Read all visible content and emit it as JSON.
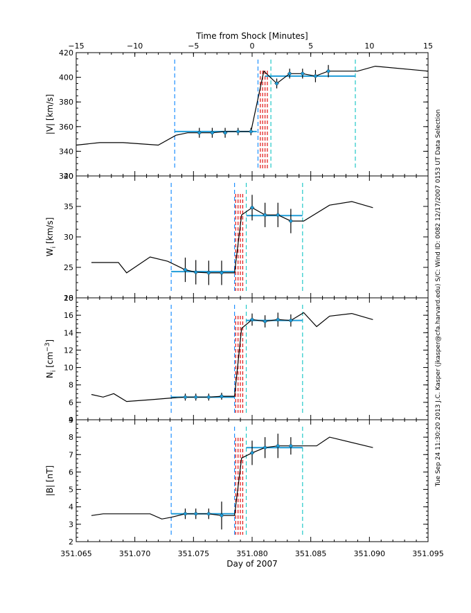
{
  "figure": {
    "top_axis_label": "Time from Shock [Minutes]",
    "top_ticks": [
      "−15",
      "−10",
      "−5",
      "0",
      "5",
      "10",
      "15"
    ],
    "x_label": "Day of 2007",
    "x_ticks": [
      "351.065",
      "351.070",
      "351.075",
      "351.080",
      "351.085",
      "351.090",
      "351.095"
    ],
    "side_text": "Tue Sep 24 11:30:20 2013   J.C. Kasper (jkasper@cfa.harvard.edu)   S/C: Wind ID: 0082 12/17/2007   0153 UT Data Selection",
    "colors": {
      "line": "#000000",
      "mean_marker": "#1e9bd7",
      "upstream_window": "#1e90ff",
      "downstream_window": "#20c8c8",
      "shock_lines": "#e01010"
    }
  },
  "chart_data": [
    {
      "type": "line",
      "title": "|V| [km/s]",
      "ylabel": "|V| [km/s]",
      "xlim": [
        351.065,
        351.095
      ],
      "ylim": [
        320,
        420
      ],
      "yticks": [
        320,
        340,
        360,
        380,
        400,
        420
      ],
      "series": [
        {
          "name": "|V|",
          "x": [
            351.065,
            351.067,
            351.069,
            351.072,
            351.0735,
            351.0745,
            351.0755,
            351.0766,
            351.0777,
            351.0788,
            351.0799,
            351.081,
            351.0821,
            351.0832,
            351.0843,
            351.0854,
            351.0865,
            351.089,
            351.0905,
            351.095
          ],
          "y": [
            345,
            347,
            347,
            345,
            353,
            355,
            355,
            355,
            356,
            356,
            356,
            405,
            395,
            403,
            403,
            401,
            405,
            405,
            409,
            405
          ]
        }
      ],
      "selected_points": {
        "x": [
          351.0755,
          351.0766,
          351.0777,
          351.0788,
          351.0799,
          351.0821,
          351.0832,
          351.0843,
          351.0854,
          351.0865
        ],
        "y": [
          355,
          355,
          355,
          356,
          356,
          395,
          403,
          403,
          401,
          405
        ],
        "err": [
          4,
          4,
          4,
          3,
          3,
          4,
          4,
          4,
          5,
          5
        ]
      },
      "upstream_mean": {
        "x": [
          351.0734,
          351.0804
        ],
        "y": 356
      },
      "downstream_mean": {
        "x": [
          351.0811,
          351.0888
        ],
        "y": 401
      },
      "upstream_window": [
        351.0734,
        351.0805
      ],
      "downstream_window": [
        351.0816,
        351.0888
      ],
      "shock_lines": [
        351.0807,
        351.0809,
        351.0811,
        351.0813
      ]
    },
    {
      "type": "line",
      "title": "W_i [km/s]",
      "ylabel": "W",
      "ylabel_sub": "i",
      "ylabel_unit": " [km/s]",
      "xlim": [
        351.065,
        351.095
      ],
      "ylim": [
        20,
        40
      ],
      "yticks": [
        20,
        25,
        30,
        35,
        40
      ],
      "series": [
        {
          "name": "Wi",
          "x": [
            351.0663,
            351.0678,
            351.0686,
            351.0693,
            351.0713,
            351.0728,
            351.0743,
            351.0752,
            351.0763,
            351.0774,
            351.0785,
            351.0791,
            351.08,
            351.0811,
            351.0822,
            351.0833,
            351.0844,
            351.0866,
            351.0885,
            351.0903
          ],
          "y": [
            25.8,
            25.8,
            25.8,
            24.1,
            26.7,
            26.0,
            24.6,
            24.2,
            24.1,
            24.1,
            24.1,
            33.6,
            34.8,
            33.6,
            33.6,
            32.6,
            32.6,
            35.2,
            35.8,
            34.8
          ]
        }
      ],
      "selected_points": {
        "x": [
          351.0743,
          351.0752,
          351.0763,
          351.0774,
          351.08,
          351.0811,
          351.0822,
          351.0833
        ],
        "y": [
          24.6,
          24.2,
          24.1,
          24.1,
          34.8,
          33.6,
          33.6,
          32.6
        ],
        "err": [
          2.0,
          2.0,
          2.0,
          2.0,
          2.1,
          2.0,
          2.0,
          2.0
        ]
      },
      "upstream_mean": {
        "x": [
          351.0731,
          351.0785
        ],
        "y": 24.3
      },
      "downstream_mean": {
        "x": [
          351.0795,
          351.0843
        ],
        "y": 33.5
      },
      "upstream_window": [
        351.0731,
        351.0785
      ],
      "downstream_window": [
        351.0795,
        351.0843
      ],
      "shock_lines": [
        351.0786,
        351.0788,
        351.079,
        351.0792
      ]
    },
    {
      "type": "line",
      "title": "N_i [cm^-3]",
      "ylabel": "N",
      "ylabel_sub": "i",
      "ylabel_unit": " [cm",
      "ylabel_sup": "−3",
      "ylabel_end": "]",
      "xlim": [
        351.065,
        351.095
      ],
      "ylim": [
        4,
        18
      ],
      "yticks": [
        4,
        6,
        8,
        10,
        12,
        14,
        16,
        18
      ],
      "series": [
        {
          "name": "Ni",
          "x": [
            351.0663,
            351.0673,
            351.0682,
            351.0693,
            351.0713,
            351.0731,
            351.0743,
            351.0752,
            351.0763,
            351.0774,
            351.0785,
            351.0791,
            351.08,
            351.0811,
            351.0822,
            351.0833,
            351.0844,
            351.0855,
            351.0866,
            351.0885,
            351.0903
          ],
          "y": [
            6.9,
            6.6,
            7.0,
            6.1,
            6.3,
            6.5,
            6.6,
            6.6,
            6.6,
            6.7,
            6.7,
            14.5,
            15.5,
            15.3,
            15.5,
            15.4,
            16.3,
            14.7,
            15.9,
            16.2,
            15.5
          ]
        }
      ],
      "selected_points": {
        "x": [
          351.0743,
          351.0752,
          351.0763,
          351.0774,
          351.08,
          351.0811,
          351.0822,
          351.0833
        ],
        "y": [
          6.6,
          6.6,
          6.6,
          6.7,
          15.5,
          15.3,
          15.5,
          15.4
        ],
        "err": [
          0.4,
          0.4,
          0.4,
          0.4,
          0.7,
          0.7,
          0.8,
          0.7
        ]
      },
      "upstream_mean": {
        "x": [
          351.0731,
          351.0785
        ],
        "y": 6.6
      },
      "downstream_mean": {
        "x": [
          351.0795,
          351.0843
        ],
        "y": 15.4
      },
      "upstream_window": [
        351.0731,
        351.0785
      ],
      "downstream_window": [
        351.0795,
        351.0843
      ],
      "shock_lines": [
        351.0786,
        351.0788,
        351.079,
        351.0792
      ]
    },
    {
      "type": "line",
      "title": "|B| [nT]",
      "ylabel": "|B| [nT]",
      "xlim": [
        351.065,
        351.095
      ],
      "ylim": [
        2,
        9
      ],
      "yticks": [
        2,
        3,
        4,
        5,
        6,
        7,
        8,
        9
      ],
      "series": [
        {
          "name": "|B|",
          "x": [
            351.0663,
            351.0673,
            351.0693,
            351.0713,
            351.0723,
            351.0731,
            351.0743,
            351.0752,
            351.0763,
            351.0774,
            351.0785,
            351.0791,
            351.08,
            351.0811,
            351.0822,
            351.0833,
            351.0844,
            351.0855,
            351.0866,
            351.0903
          ],
          "y": [
            3.5,
            3.6,
            3.6,
            3.6,
            3.3,
            3.4,
            3.6,
            3.6,
            3.6,
            3.5,
            3.5,
            6.8,
            7.1,
            7.4,
            7.5,
            7.5,
            7.5,
            7.5,
            8.0,
            7.4
          ]
        }
      ],
      "selected_points": {
        "x": [
          351.0743,
          351.0752,
          351.0763,
          351.0774,
          351.08,
          351.0811,
          351.0822,
          351.0833
        ],
        "y": [
          3.6,
          3.6,
          3.6,
          3.5,
          7.1,
          7.4,
          7.5,
          7.5
        ],
        "err": [
          0.3,
          0.3,
          0.3,
          0.8,
          0.7,
          0.6,
          0.7,
          0.5
        ]
      },
      "upstream_mean": {
        "x": [
          351.0731,
          351.0785
        ],
        "y": 3.6
      },
      "downstream_mean": {
        "x": [
          351.0795,
          351.0843
        ],
        "y": 7.4
      },
      "upstream_window": [
        351.0731,
        351.0785
      ],
      "downstream_window": [
        351.0795,
        351.0843
      ],
      "shock_lines": [
        351.0786,
        351.0788,
        351.079,
        351.0792
      ]
    }
  ]
}
